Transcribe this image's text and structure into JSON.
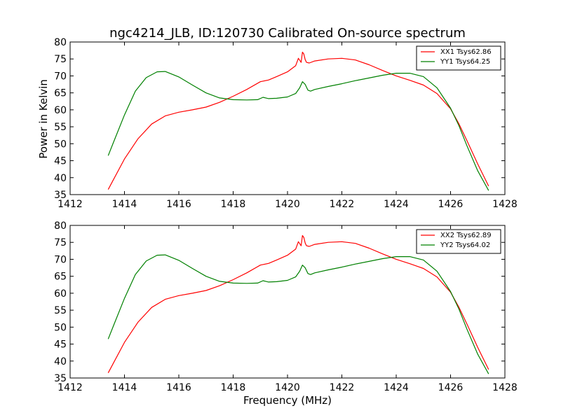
{
  "figure": {
    "title": "ngc4214_JLB, ID:120730 Calibrated On-source spectrum",
    "xlabel": "Frequency (MHz)",
    "ylabel": "Power in Kelvin"
  },
  "colors": {
    "xx": "#ff0000",
    "yy": "#008000"
  },
  "chart_data": [
    {
      "type": "line",
      "xlim": [
        1412,
        1428
      ],
      "ylim": [
        35,
        80
      ],
      "xticks": [
        1412,
        1414,
        1416,
        1418,
        1420,
        1422,
        1424,
        1426,
        1428
      ],
      "yticks": [
        35,
        40,
        45,
        50,
        55,
        60,
        65,
        70,
        75,
        80
      ],
      "grid": false,
      "legend": "top-right",
      "xlabel": "",
      "ylabel": "Power in Kelvin",
      "series": [
        {
          "name": "XX1 Tsys62.86",
          "color": "#ff0000",
          "x": [
            1413.4,
            1413.6,
            1414.0,
            1414.5,
            1415.0,
            1415.5,
            1416.0,
            1416.5,
            1417.0,
            1417.5,
            1418.0,
            1418.5,
            1419.0,
            1419.3,
            1419.6,
            1420.0,
            1420.3,
            1420.4,
            1420.5,
            1420.55,
            1420.6,
            1420.65,
            1420.7,
            1420.8,
            1421.0,
            1421.5,
            1422.0,
            1422.5,
            1423.0,
            1423.5,
            1424.0,
            1424.5,
            1425.0,
            1425.5,
            1426.0,
            1426.3,
            1426.6,
            1427.0,
            1427.4
          ],
          "y": [
            36.5,
            39.5,
            45.5,
            51.5,
            55.8,
            58.2,
            59.3,
            60.0,
            60.8,
            62.2,
            64.0,
            66.0,
            68.3,
            68.8,
            69.8,
            71.2,
            73.0,
            75.2,
            74.0,
            77.0,
            76.5,
            74.8,
            74.0,
            73.8,
            74.4,
            75.0,
            75.2,
            74.7,
            73.3,
            71.6,
            70.0,
            68.7,
            67.3,
            64.8,
            60.3,
            56.0,
            51.0,
            44.0,
            37.5
          ]
        },
        {
          "name": "YY1 Tsys64.25",
          "color": "#008000",
          "x": [
            1413.4,
            1413.6,
            1414.0,
            1414.4,
            1414.8,
            1415.2,
            1415.5,
            1416.0,
            1416.5,
            1417.0,
            1417.5,
            1418.0,
            1418.5,
            1418.9,
            1419.1,
            1419.3,
            1419.6,
            1420.0,
            1420.3,
            1420.45,
            1420.55,
            1420.65,
            1420.75,
            1420.85,
            1421.0,
            1421.5,
            1422.0,
            1422.5,
            1423.0,
            1423.5,
            1424.0,
            1424.5,
            1425.0,
            1425.5,
            1426.0,
            1426.3,
            1426.6,
            1427.0,
            1427.4
          ],
          "y": [
            46.5,
            50.5,
            58.5,
            65.5,
            69.5,
            71.2,
            71.3,
            69.7,
            67.3,
            65.0,
            63.5,
            63.0,
            62.9,
            63.0,
            63.7,
            63.3,
            63.4,
            63.8,
            64.8,
            66.5,
            68.3,
            67.5,
            65.8,
            65.5,
            66.0,
            66.9,
            67.7,
            68.6,
            69.4,
            70.2,
            70.8,
            70.8,
            69.8,
            66.5,
            60.5,
            55.5,
            49.5,
            42.0,
            36.2
          ]
        }
      ]
    },
    {
      "type": "line",
      "xlim": [
        1412,
        1428
      ],
      "ylim": [
        35,
        80
      ],
      "xticks": [
        1412,
        1414,
        1416,
        1418,
        1420,
        1422,
        1424,
        1426,
        1428
      ],
      "yticks": [
        35,
        40,
        45,
        50,
        55,
        60,
        65,
        70,
        75,
        80
      ],
      "grid": false,
      "legend": "top-right",
      "xlabel": "Frequency (MHz)",
      "ylabel": "",
      "series": [
        {
          "name": "XX2 Tsys62.89",
          "color": "#ff0000",
          "x": [
            1413.4,
            1413.6,
            1414.0,
            1414.5,
            1415.0,
            1415.5,
            1416.0,
            1416.5,
            1417.0,
            1417.5,
            1418.0,
            1418.5,
            1419.0,
            1419.3,
            1419.6,
            1420.0,
            1420.3,
            1420.4,
            1420.5,
            1420.55,
            1420.6,
            1420.65,
            1420.7,
            1420.8,
            1421.0,
            1421.5,
            1422.0,
            1422.5,
            1423.0,
            1423.5,
            1424.0,
            1424.5,
            1425.0,
            1425.5,
            1426.0,
            1426.3,
            1426.6,
            1427.0,
            1427.4
          ],
          "y": [
            36.5,
            39.5,
            45.5,
            51.5,
            55.8,
            58.2,
            59.3,
            60.0,
            60.8,
            62.2,
            64.0,
            66.0,
            68.3,
            68.8,
            69.8,
            71.2,
            73.0,
            75.2,
            74.0,
            77.0,
            76.5,
            74.8,
            74.0,
            73.8,
            74.4,
            75.0,
            75.2,
            74.7,
            73.3,
            71.6,
            70.0,
            68.7,
            67.3,
            64.8,
            60.3,
            56.0,
            51.0,
            44.0,
            37.5
          ]
        },
        {
          "name": "YY2 Tsys64.02",
          "color": "#008000",
          "x": [
            1413.4,
            1413.6,
            1414.0,
            1414.4,
            1414.8,
            1415.2,
            1415.5,
            1416.0,
            1416.5,
            1417.0,
            1417.5,
            1418.0,
            1418.5,
            1418.9,
            1419.1,
            1419.3,
            1419.6,
            1420.0,
            1420.3,
            1420.45,
            1420.55,
            1420.65,
            1420.75,
            1420.85,
            1421.0,
            1421.5,
            1422.0,
            1422.5,
            1423.0,
            1423.5,
            1424.0,
            1424.5,
            1425.0,
            1425.5,
            1426.0,
            1426.3,
            1426.6,
            1427.0,
            1427.4
          ],
          "y": [
            46.5,
            50.5,
            58.5,
            65.5,
            69.5,
            71.2,
            71.3,
            69.7,
            67.3,
            65.0,
            63.5,
            63.0,
            62.9,
            63.0,
            63.7,
            63.3,
            63.4,
            63.8,
            64.8,
            66.5,
            68.3,
            67.5,
            65.8,
            65.5,
            66.0,
            66.9,
            67.7,
            68.6,
            69.4,
            70.2,
            70.8,
            70.8,
            69.8,
            66.5,
            60.5,
            55.5,
            49.5,
            42.0,
            36.2
          ]
        }
      ]
    }
  ]
}
